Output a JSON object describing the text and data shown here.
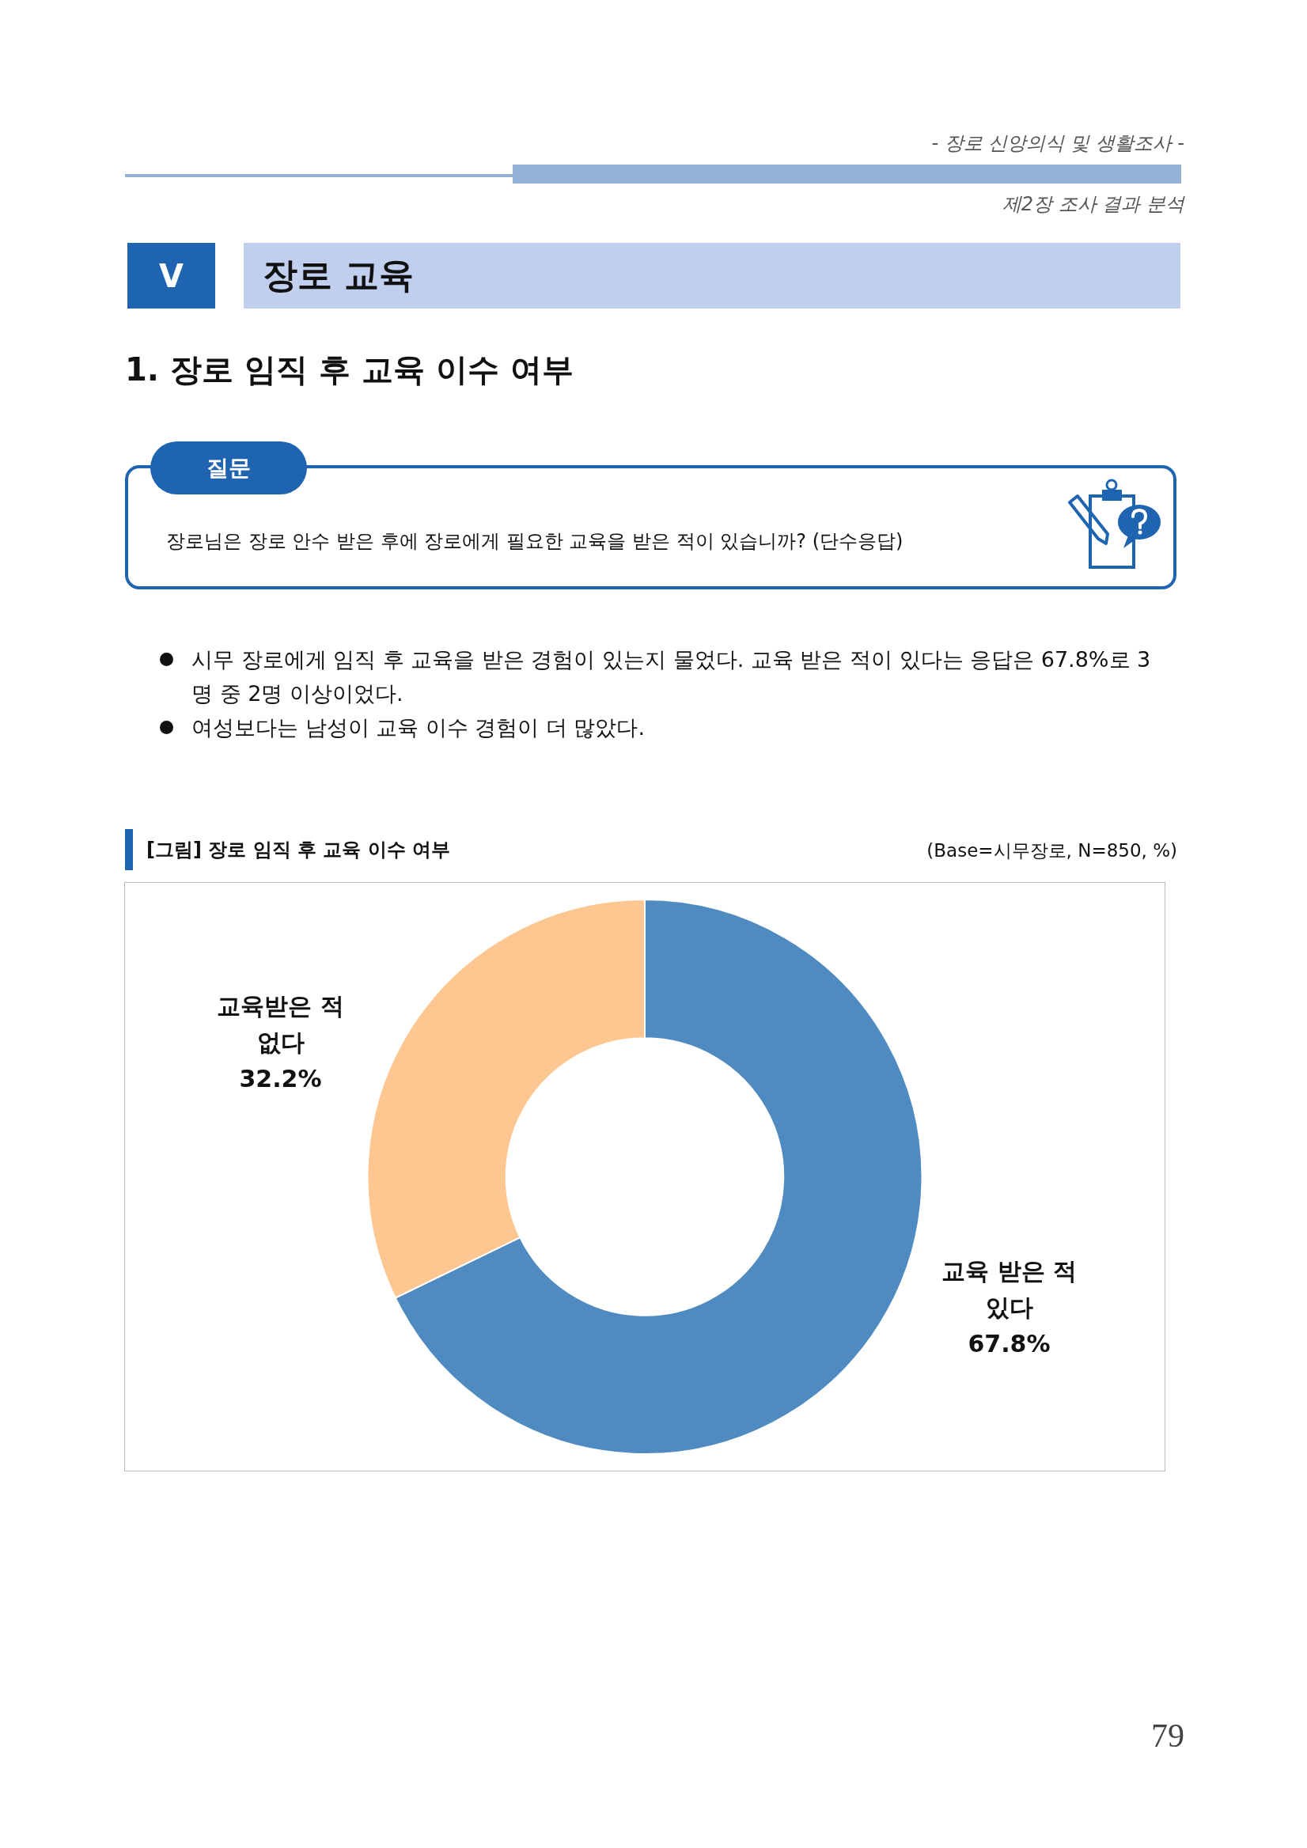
{
  "chart_data": {
    "type": "donut",
    "title": "[그림] 장로 임직 후 교육 이수 여부",
    "subtitle": "(Base=시무장로, N=850, %)",
    "categories": [
      "교육 받은 적 있다",
      "교육받은 적 없다"
    ],
    "values": [
      67.8,
      32.2
    ],
    "value_labels": [
      "67.8%",
      "32.2%"
    ],
    "colors": [
      "#4f8bc1",
      "#fec690"
    ],
    "annotations": [
      "- 장로 신앙의식 및 생활조사 -",
      "제2장 조사 결과 분석",
      "V",
      "장로 교육",
      "1. 장로 임직 후 교육 이수 여부",
      "질문",
      "장로님은 장로 안수 받은 후에 장로에게 필요한 교육을 받은 적이 있습니까? (단수응답)",
      "시무 장로에게 임직 후 교육을 받은 경험이 있는지 물었다. 교육 받은 적이 있다는 응답은 67.8%로 3명 중 2명 이상이었다.",
      "여성보다는 남성이 교육 이수 경험이 더 많았다.",
      "79"
    ]
  }
}
